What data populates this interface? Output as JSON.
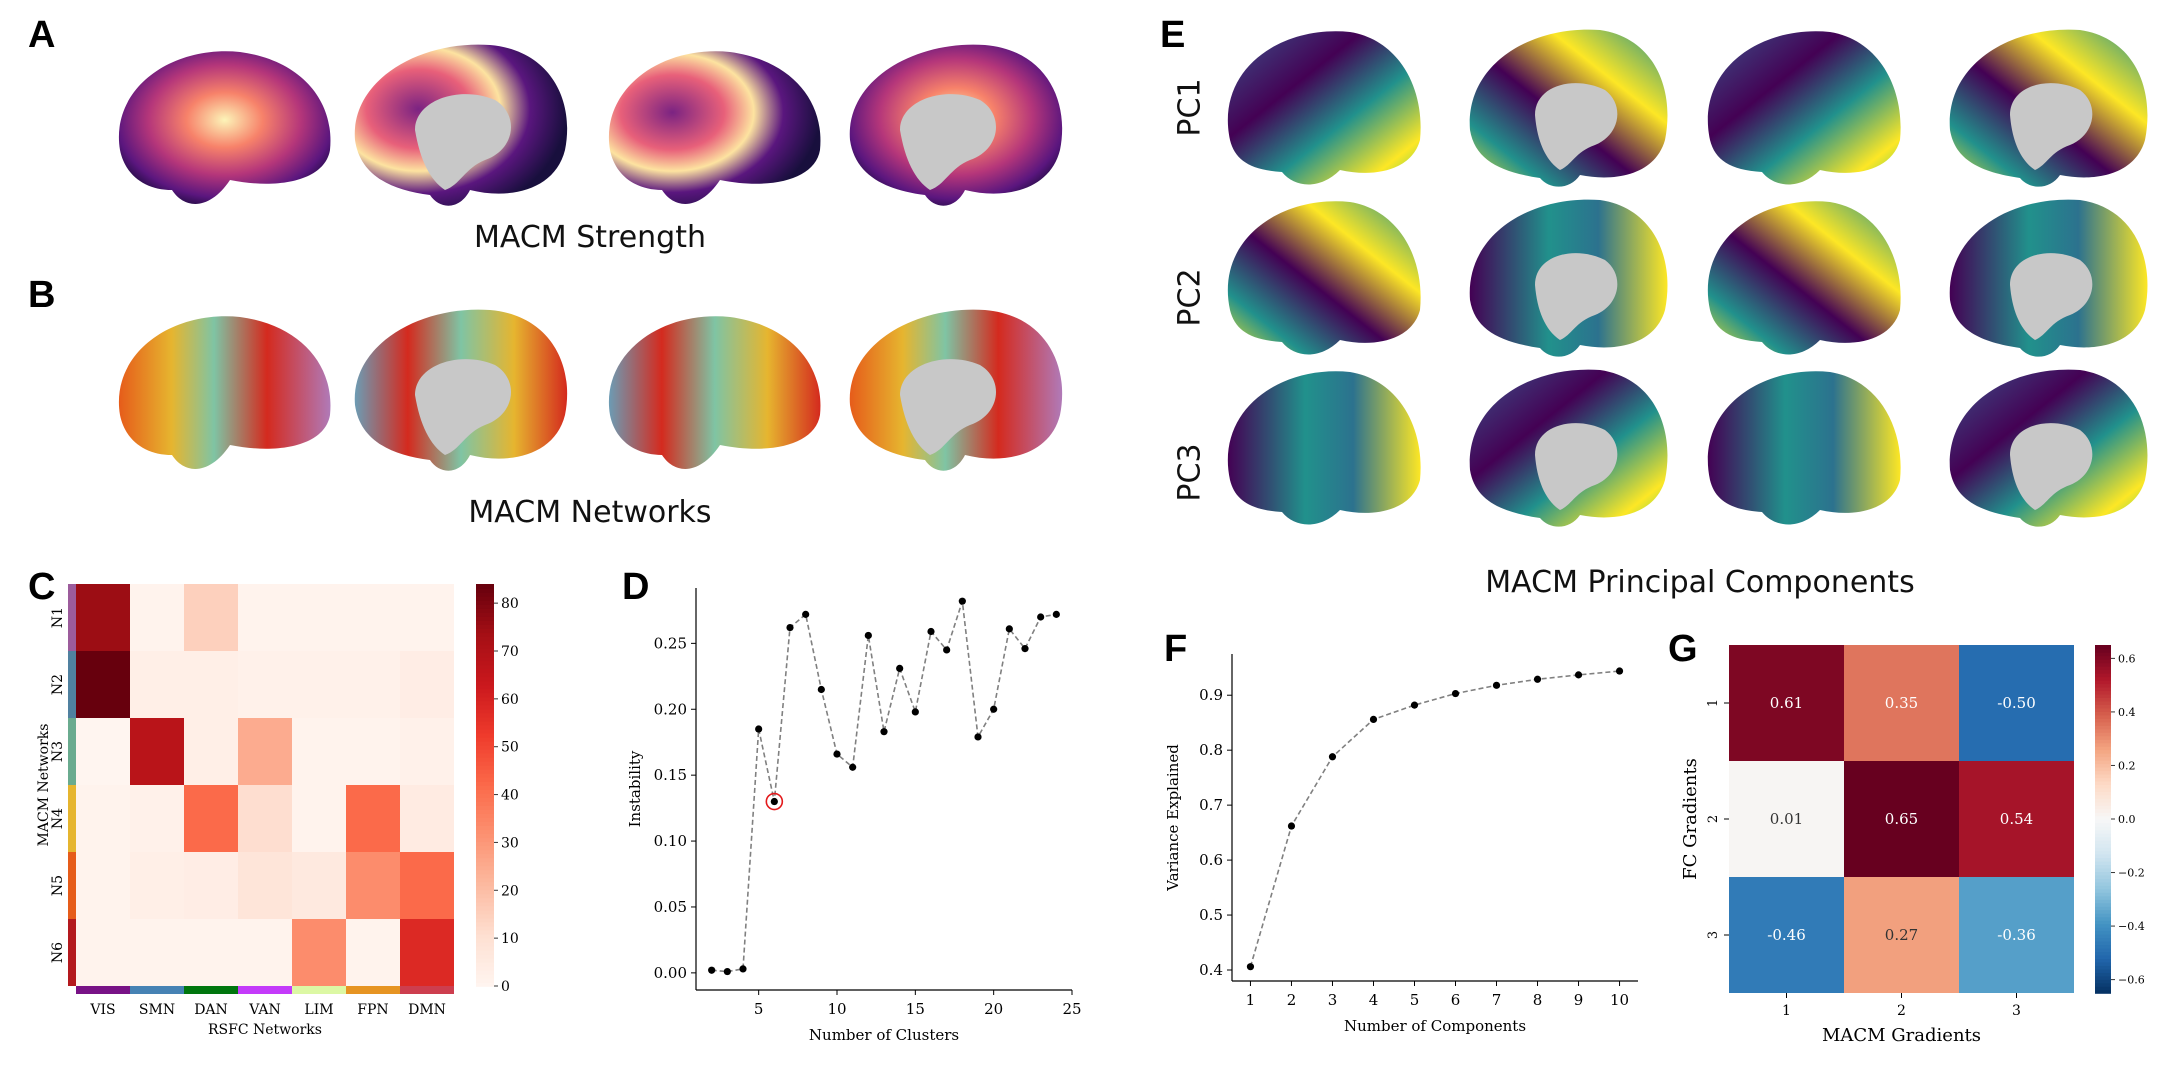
{
  "panels": {
    "A": {
      "letter": "A",
      "caption": "MACM Strength",
      "views": [
        "left-lateral",
        "left-medial",
        "right-lateral",
        "right-medial"
      ],
      "colormap": "magma"
    },
    "B": {
      "letter": "B",
      "caption": "MACM Networks",
      "views": [
        "left-lateral",
        "left-medial",
        "right-lateral",
        "right-medial"
      ]
    },
    "E": {
      "letter": "E",
      "caption": "MACM Principal Components",
      "rows": [
        "PC1",
        "PC2",
        "PC3"
      ],
      "colormap": "viridis"
    },
    "C_letter": "C",
    "D_letter": "D",
    "F_letter": "F",
    "G_letter": "G"
  },
  "chart_data": [
    {
      "id": "C",
      "type": "heatmap",
      "title": "",
      "xlabel": "RSFC Networks",
      "ylabel": "MACM Networks",
      "x_categories": [
        "VIS",
        "SMN",
        "DAN",
        "VAN",
        "LIM",
        "FPN",
        "DMN"
      ],
      "y_categories": [
        "N1",
        "N2",
        "N3",
        "N4",
        "N5",
        "N6"
      ],
      "x_category_colors": [
        "#781286",
        "#4682b4",
        "#00760e",
        "#c43afa",
        "#dcf8a4",
        "#e69422",
        "#cd3e4e"
      ],
      "y_category_colors": [
        "#9c5c9c",
        "#5081a0",
        "#6aab8f",
        "#e6b52f",
        "#e65c1a",
        "#b4191e"
      ],
      "values": [
        [
          75,
          1,
          15,
          1,
          1,
          1,
          1
        ],
        [
          84,
          3,
          3,
          2,
          2,
          2,
          4
        ],
        [
          0,
          68,
          3,
          25,
          1,
          1,
          2
        ],
        [
          1,
          2,
          42,
          11,
          1,
          42,
          5
        ],
        [
          1,
          3,
          4,
          8,
          6,
          33,
          42
        ],
        [
          1,
          1,
          1,
          1,
          33,
          1,
          58
        ]
      ],
      "colorbar": {
        "min": 0,
        "max": 84,
        "ticks": [
          0,
          10,
          20,
          30,
          40,
          50,
          60,
          70,
          80
        ],
        "colormap": "Reds"
      }
    },
    {
      "id": "D",
      "type": "line",
      "xlabel": "Number of Clusters",
      "ylabel": "Instability",
      "x": [
        2,
        3,
        4,
        5,
        6,
        7,
        8,
        9,
        10,
        11,
        12,
        13,
        14,
        15,
        16,
        17,
        18,
        19,
        20,
        21,
        22,
        23,
        24
      ],
      "y": [
        0.002,
        0.001,
        0.003,
        0.185,
        0.13,
        0.262,
        0.272,
        0.215,
        0.166,
        0.156,
        0.256,
        0.183,
        0.231,
        0.198,
        0.259,
        0.245,
        0.282,
        0.179,
        0.2,
        0.261,
        0.246,
        0.27,
        0.272
      ],
      "highlight": {
        "x": 6,
        "y": 0.13,
        "color": "#e31a1c"
      },
      "xlim": [
        1,
        25
      ],
      "ylim": [
        -0.013,
        0.292
      ],
      "xticks": [
        5,
        10,
        15,
        20,
        25
      ],
      "yticks": [
        0.0,
        0.05,
        0.1,
        0.15,
        0.2,
        0.25
      ],
      "ytick_labels": [
        "0.00",
        "0.05",
        "0.10",
        "0.15",
        "0.20",
        "0.25"
      ],
      "line_style": "dashed",
      "line_color": "#808080",
      "marker_color": "#000000"
    },
    {
      "id": "F",
      "type": "line",
      "xlabel": "Number of Components",
      "ylabel": "Variance Explained",
      "x": [
        1,
        2,
        3,
        4,
        5,
        6,
        7,
        8,
        9,
        10
      ],
      "y": [
        0.406,
        0.662,
        0.788,
        0.856,
        0.882,
        0.903,
        0.918,
        0.929,
        0.937,
        0.944
      ],
      "xlim": [
        0.55,
        10.45
      ],
      "ylim": [
        0.38,
        0.975
      ],
      "xticks": [
        1,
        2,
        3,
        4,
        5,
        6,
        7,
        8,
        9,
        10
      ],
      "yticks": [
        0.4,
        0.5,
        0.6,
        0.7,
        0.8,
        0.9
      ],
      "ytick_labels": [
        "0.4",
        "0.5",
        "0.6",
        "0.7",
        "0.8",
        "0.9"
      ],
      "line_style": "dashed",
      "line_color": "#808080",
      "marker_color": "#000000"
    },
    {
      "id": "G",
      "type": "heatmap",
      "xlabel": "MACM Gradients",
      "ylabel": "FC Gradients",
      "x_categories": [
        "1",
        "2",
        "3"
      ],
      "y_categories": [
        "1",
        "2",
        "3"
      ],
      "values": [
        [
          0.61,
          0.35,
          -0.5
        ],
        [
          0.01,
          0.65,
          0.54
        ],
        [
          -0.46,
          0.27,
          -0.36
        ]
      ],
      "labels": [
        [
          "0.61",
          "0.35",
          "-0.50"
        ],
        [
          "0.01",
          "0.65",
          "0.54"
        ],
        [
          "-0.46",
          "0.27",
          "-0.36"
        ]
      ],
      "colorbar": {
        "min": -0.65,
        "max": 0.65,
        "ticks": [
          0.6,
          0.4,
          0.2,
          0.0,
          -0.2,
          -0.4,
          -0.6
        ],
        "tick_labels": [
          "0.6",
          "0.4",
          "0.2",
          "0.0",
          "−0.2",
          "−0.4",
          "−0.6"
        ],
        "colormap": "RdBu_r"
      }
    }
  ]
}
